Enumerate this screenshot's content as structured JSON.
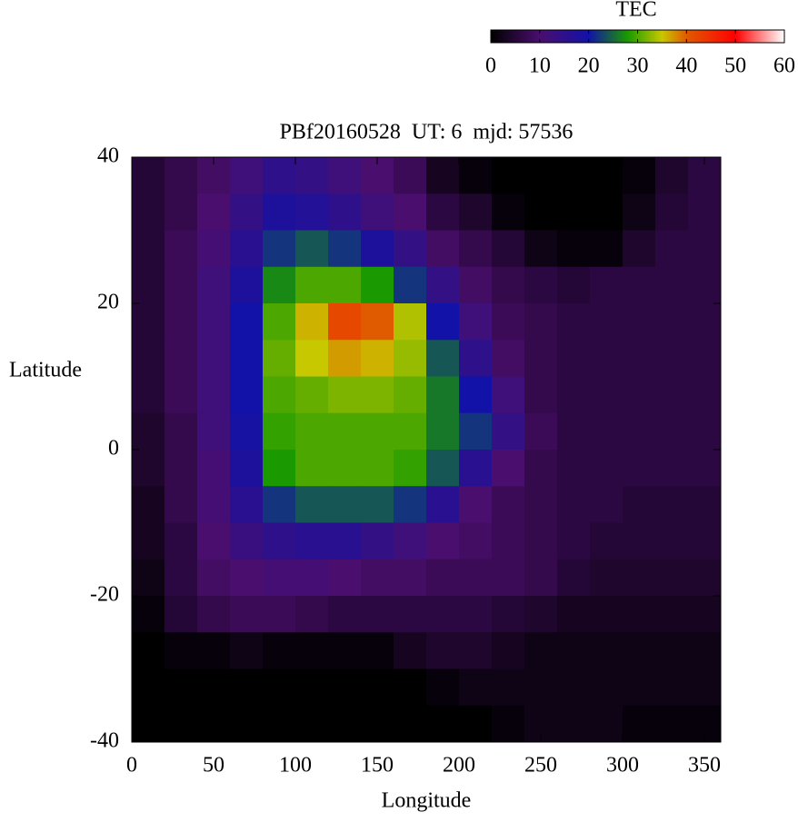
{
  "chart_data": {
    "type": "heatmap",
    "title": "PBf20160528  UT: 6  mjd: 57536",
    "xlabel": "Longitude",
    "ylabel": "Latitude",
    "colorbar_label": "TEC",
    "xlim": [
      0,
      360
    ],
    "ylim": [
      -40,
      40
    ],
    "xticks": [
      0,
      50,
      100,
      150,
      200,
      250,
      300,
      350
    ],
    "yticks": [
      -40,
      -20,
      0,
      20,
      40
    ],
    "clim": [
      0,
      60
    ],
    "cticks": [
      0,
      10,
      20,
      30,
      40,
      50,
      60
    ],
    "colormap": [
      [
        0,
        "#000000"
      ],
      [
        10,
        "#4a0e6e"
      ],
      [
        20,
        "#1212a8"
      ],
      [
        28,
        "#1a9a00"
      ],
      [
        35,
        "#c8c800"
      ],
      [
        40,
        "#e05a00"
      ],
      [
        50,
        "#ff0000"
      ],
      [
        60,
        "#ffffff"
      ]
    ],
    "x": [
      10,
      30,
      50,
      70,
      90,
      110,
      130,
      150,
      170,
      190,
      210,
      230,
      250,
      270,
      290,
      310,
      330,
      350
    ],
    "y": [
      37.5,
      32.5,
      27.5,
      22.5,
      17.5,
      12.5,
      7.5,
      2.5,
      -2.5,
      -7.5,
      -12.5,
      -17.5,
      -22.5,
      -27.5,
      -32.5,
      -37.5
    ],
    "values": [
      [
        5,
        7,
        9,
        12,
        15,
        14,
        12,
        10,
        8,
        3,
        1,
        0,
        0,
        0,
        0,
        1,
        4,
        6
      ],
      [
        5,
        7,
        10,
        14,
        18,
        17,
        15,
        12,
        10,
        6,
        4,
        1,
        0,
        0,
        0,
        2,
        5,
        6
      ],
      [
        5,
        8,
        11,
        16,
        22,
        24,
        22,
        18,
        14,
        9,
        7,
        5,
        2,
        1,
        1,
        4,
        6,
        6
      ],
      [
        5,
        8,
        12,
        18,
        27,
        30,
        30,
        28,
        22,
        14,
        9,
        7,
        6,
        5,
        6,
        6,
        6,
        6
      ],
      [
        5,
        8,
        12,
        20,
        30,
        36,
        42,
        40,
        34,
        20,
        12,
        8,
        7,
        6,
        6,
        6,
        6,
        6
      ],
      [
        5,
        8,
        12,
        20,
        31,
        35,
        37,
        36,
        33,
        24,
        15,
        9,
        7,
        6,
        6,
        6,
        6,
        6
      ],
      [
        5,
        8,
        12,
        20,
        30,
        31,
        32,
        32,
        31,
        26,
        20,
        12,
        7,
        6,
        6,
        6,
        6,
        6
      ],
      [
        4,
        7,
        12,
        19,
        29,
        30,
        30,
        30,
        30,
        26,
        22,
        14,
        8,
        6,
        6,
        6,
        6,
        6
      ],
      [
        4,
        7,
        11,
        18,
        28,
        30,
        30,
        30,
        29,
        24,
        16,
        10,
        7,
        6,
        6,
        6,
        6,
        6
      ],
      [
        3,
        7,
        11,
        16,
        22,
        24,
        24,
        24,
        22,
        16,
        10,
        8,
        7,
        6,
        6,
        5,
        5,
        5
      ],
      [
        3,
        6,
        10,
        13,
        15,
        16,
        16,
        14,
        12,
        10,
        9,
        8,
        7,
        6,
        5,
        5,
        5,
        5
      ],
      [
        2,
        6,
        9,
        10,
        11,
        11,
        10,
        9,
        9,
        8,
        8,
        8,
        7,
        5,
        4,
        4,
        4,
        4
      ],
      [
        1,
        5,
        7,
        8,
        8,
        7,
        6,
        6,
        6,
        6,
        6,
        5,
        4,
        3,
        3,
        3,
        3,
        3
      ],
      [
        0,
        1,
        1,
        2,
        1,
        1,
        1,
        1,
        3,
        4,
        4,
        3,
        2,
        2,
        2,
        2,
        2,
        2
      ],
      [
        0,
        0,
        0,
        0,
        0,
        0,
        0,
        0,
        0,
        1,
        2,
        2,
        2,
        2,
        2,
        2,
        2,
        2
      ],
      [
        0,
        0,
        0,
        0,
        0,
        0,
        0,
        0,
        0,
        0,
        0,
        1,
        2,
        2,
        2,
        1,
        1,
        1
      ]
    ]
  }
}
